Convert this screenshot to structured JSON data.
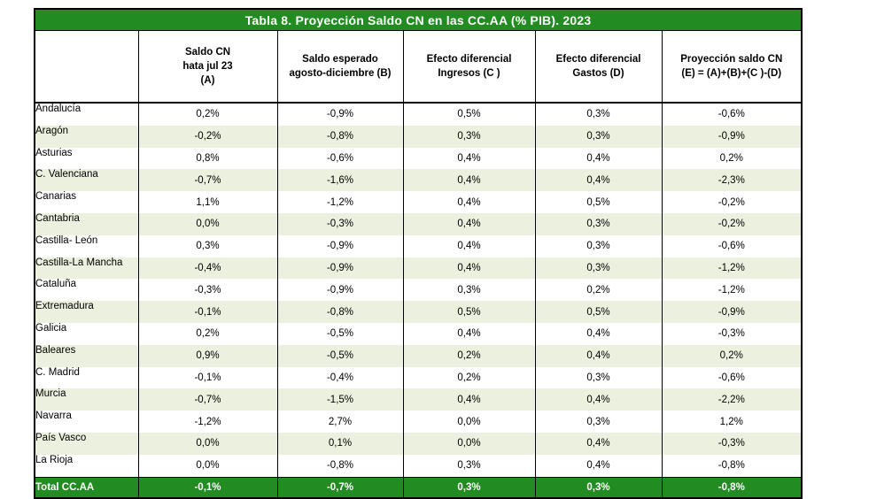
{
  "title": "Tabla 8. Proyección Saldo CN en las CC.AA (% PIB). 2023",
  "headers": [
    "",
    "Saldo CN\nhata jul 23\n(A)",
    "Saldo esperado\nagosto-diciembre (B)",
    "Efecto diferencial\nIngresos (C )",
    "Efecto diferencial\nGastos (D)",
    "Proyección saldo CN\n(E) = (A)+(B)+(C )-(D)"
  ],
  "rows": [
    [
      "Andalucía",
      "0,2%",
      "-0,9%",
      "0,5%",
      "0,3%",
      "-0,6%"
    ],
    [
      "Aragón",
      "-0,2%",
      "-0,8%",
      "0,3%",
      "0,3%",
      "-0,9%"
    ],
    [
      "Asturias",
      "0,8%",
      "-0,6%",
      "0,4%",
      "0,4%",
      "0,2%"
    ],
    [
      "C. Valenciana",
      "-0,7%",
      "-1,6%",
      "0,4%",
      "0,4%",
      "-2,3%"
    ],
    [
      "Canarias",
      "1,1%",
      "-1,2%",
      "0,4%",
      "0,5%",
      "-0,2%"
    ],
    [
      "Cantabria",
      "0,0%",
      "-0,3%",
      "0,4%",
      "0,3%",
      "-0,2%"
    ],
    [
      "Castilla- León",
      "0,3%",
      "-0,9%",
      "0,4%",
      "0,3%",
      "-0,6%"
    ],
    [
      "Castilla-La Mancha",
      "-0,4%",
      "-0,9%",
      "0,4%",
      "0,3%",
      "-1,2%"
    ],
    [
      "Cataluña",
      "-0,3%",
      "-0,9%",
      "0,3%",
      "0,2%",
      "-1,2%"
    ],
    [
      "Extremadura",
      "-0,1%",
      "-0,8%",
      "0,5%",
      "0,5%",
      "-0,9%"
    ],
    [
      "Galicia",
      "0,2%",
      "-0,5%",
      "0,4%",
      "0,4%",
      "-0,3%"
    ],
    [
      "Baleares",
      "0,9%",
      "-0,5%",
      "0,2%",
      "0,4%",
      "0,2%"
    ],
    [
      "C. Madrid",
      "-0,1%",
      "-0,4%",
      "0,2%",
      "0,3%",
      "-0,6%"
    ],
    [
      "Murcia",
      "-0,7%",
      "-1,5%",
      "0,4%",
      "0,4%",
      "-2,2%"
    ],
    [
      "Navarra",
      "-1,2%",
      "2,7%",
      "0,0%",
      "0,3%",
      "1,2%"
    ],
    [
      "País Vasco",
      "0,0%",
      "0,1%",
      "0,0%",
      "0,4%",
      "-0,3%"
    ],
    [
      "La Rioja",
      "0,0%",
      "-0,8%",
      "0,3%",
      "0,4%",
      "-0,8%"
    ]
  ],
  "total": [
    "Total CC.AA",
    "-0,1%",
    "-0,7%",
    "0,3%",
    "0,3%",
    "-0,8%"
  ],
  "colors": {
    "header_green": "#228b22",
    "band_green": "#ebf1de"
  }
}
